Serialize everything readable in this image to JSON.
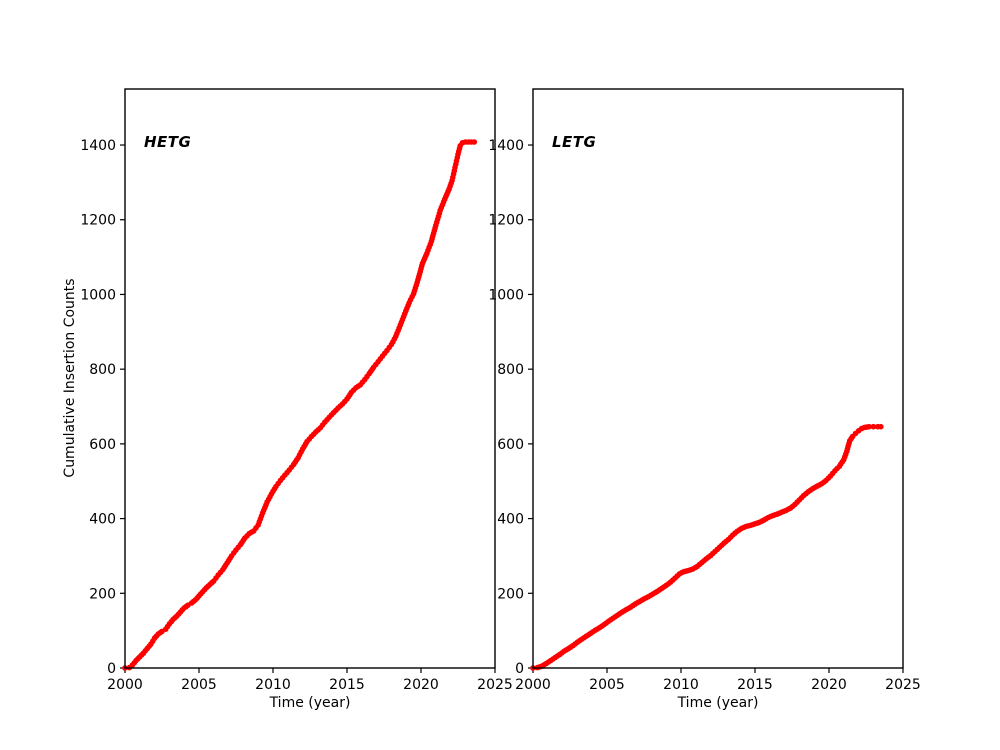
{
  "figure": {
    "background": "#ffffff",
    "axis_color": "#000000",
    "marker_color": "#ff0000"
  },
  "chart_data": [
    {
      "type": "scatter",
      "panel_label": "HETG",
      "xlabel": "Time (year)",
      "ylabel": "Cumulative Insertion Counts",
      "xlim": [
        2000,
        2025
      ],
      "ylim": [
        0,
        1550
      ],
      "xticks": [
        2000,
        2005,
        2010,
        2015,
        2020,
        2025
      ],
      "yticks": [
        0,
        200,
        400,
        600,
        800,
        1000,
        1200,
        1400
      ],
      "grid": false,
      "legend": "none",
      "marker": "circle",
      "color": "#ff0000",
      "points": [
        [
          2000.0,
          0
        ],
        [
          2000.3,
          1
        ],
        [
          2000.5,
          8
        ],
        [
          2000.75,
          20
        ],
        [
          2001.0,
          30
        ],
        [
          2001.25,
          40
        ],
        [
          2001.5,
          52
        ],
        [
          2001.75,
          64
        ],
        [
          2002.0,
          80
        ],
        [
          2002.25,
          91
        ],
        [
          2002.5,
          98
        ],
        [
          2002.75,
          104
        ],
        [
          2003.0,
          118
        ],
        [
          2003.25,
          130
        ],
        [
          2003.5,
          139
        ],
        [
          2003.75,
          150
        ],
        [
          2004.0,
          161
        ],
        [
          2004.25,
          168
        ],
        [
          2004.5,
          174
        ],
        [
          2004.75,
          182
        ],
        [
          2005.0,
          193
        ],
        [
          2005.25,
          204
        ],
        [
          2005.5,
          215
        ],
        [
          2005.75,
          224
        ],
        [
          2006.0,
          233
        ],
        [
          2006.3,
          249
        ],
        [
          2006.6,
          263
        ],
        [
          2006.9,
          281
        ],
        [
          2007.2,
          300
        ],
        [
          2007.5,
          316
        ],
        [
          2007.8,
          330
        ],
        [
          2008.1,
          348
        ],
        [
          2008.4,
          360
        ],
        [
          2008.7,
          367
        ],
        [
          2009.0,
          383
        ],
        [
          2009.3,
          415
        ],
        [
          2009.6,
          444
        ],
        [
          2009.9,
          466
        ],
        [
          2010.2,
          486
        ],
        [
          2010.5,
          502
        ],
        [
          2010.8,
          516
        ],
        [
          2011.1,
          530
        ],
        [
          2011.4,
          545
        ],
        [
          2011.7,
          563
        ],
        [
          2012.0,
          586
        ],
        [
          2012.3,
          606
        ],
        [
          2012.6,
          620
        ],
        [
          2012.9,
          632
        ],
        [
          2013.2,
          643
        ],
        [
          2013.5,
          658
        ],
        [
          2013.8,
          671
        ],
        [
          2014.1,
          684
        ],
        [
          2014.4,
          696
        ],
        [
          2014.7,
          707
        ],
        [
          2015.0,
          720
        ],
        [
          2015.3,
          738
        ],
        [
          2015.6,
          750
        ],
        [
          2015.9,
          758
        ],
        [
          2016.2,
          772
        ],
        [
          2016.5,
          788
        ],
        [
          2016.8,
          805
        ],
        [
          2017.1,
          820
        ],
        [
          2017.4,
          835
        ],
        [
          2017.7,
          850
        ],
        [
          2018.0,
          866
        ],
        [
          2018.3,
          888
        ],
        [
          2018.6,
          918
        ],
        [
          2018.9,
          948
        ],
        [
          2019.2,
          978
        ],
        [
          2019.5,
          1002
        ],
        [
          2019.8,
          1040
        ],
        [
          2020.1,
          1083
        ],
        [
          2020.4,
          1110
        ],
        [
          2020.7,
          1142
        ],
        [
          2021.0,
          1185
        ],
        [
          2021.3,
          1225
        ],
        [
          2021.6,
          1255
        ],
        [
          2021.9,
          1282
        ],
        [
          2022.1,
          1305
        ],
        [
          2022.3,
          1340
        ],
        [
          2022.5,
          1375
        ],
        [
          2022.65,
          1398
        ],
        [
          2022.8,
          1406
        ],
        [
          2023.0,
          1408
        ],
        [
          2023.2,
          1408
        ],
        [
          2023.4,
          1408
        ],
        [
          2023.6,
          1408
        ]
      ]
    },
    {
      "type": "scatter",
      "panel_label": "LETG",
      "xlabel": "Time (year)",
      "ylabel": "",
      "xlim": [
        2000,
        2025
      ],
      "ylim": [
        0,
        1550
      ],
      "xticks": [
        2000,
        2005,
        2010,
        2015,
        2020,
        2025
      ],
      "yticks": [
        0,
        200,
        400,
        600,
        800,
        1000,
        1200,
        1400
      ],
      "grid": false,
      "legend": "none",
      "marker": "circle",
      "color": "#ff0000",
      "points": [
        [
          2000.0,
          0
        ],
        [
          2000.3,
          1
        ],
        [
          2000.6,
          5
        ],
        [
          2000.9,
          12
        ],
        [
          2001.2,
          20
        ],
        [
          2001.5,
          28
        ],
        [
          2001.8,
          36
        ],
        [
          2002.1,
          45
        ],
        [
          2002.4,
          52
        ],
        [
          2002.7,
          60
        ],
        [
          2003.0,
          69
        ],
        [
          2003.3,
          77
        ],
        [
          2003.6,
          85
        ],
        [
          2003.9,
          93
        ],
        [
          2004.2,
          101
        ],
        [
          2004.5,
          108
        ],
        [
          2004.8,
          116
        ],
        [
          2005.1,
          125
        ],
        [
          2005.4,
          133
        ],
        [
          2005.7,
          141
        ],
        [
          2006.0,
          149
        ],
        [
          2006.3,
          156
        ],
        [
          2006.6,
          163
        ],
        [
          2006.9,
          171
        ],
        [
          2007.2,
          178
        ],
        [
          2007.5,
          185
        ],
        [
          2007.8,
          191
        ],
        [
          2008.1,
          198
        ],
        [
          2008.4,
          205
        ],
        [
          2008.7,
          213
        ],
        [
          2009.0,
          221
        ],
        [
          2009.3,
          230
        ],
        [
          2009.6,
          241
        ],
        [
          2009.9,
          252
        ],
        [
          2010.2,
          258
        ],
        [
          2010.5,
          261
        ],
        [
          2010.8,
          265
        ],
        [
          2011.1,
          272
        ],
        [
          2011.4,
          282
        ],
        [
          2011.7,
          292
        ],
        [
          2012.0,
          301
        ],
        [
          2012.3,
          312
        ],
        [
          2012.6,
          323
        ],
        [
          2012.9,
          334
        ],
        [
          2013.2,
          344
        ],
        [
          2013.5,
          356
        ],
        [
          2013.8,
          366
        ],
        [
          2014.1,
          374
        ],
        [
          2014.4,
          379
        ],
        [
          2014.7,
          382
        ],
        [
          2015.0,
          386
        ],
        [
          2015.3,
          390
        ],
        [
          2015.6,
          396
        ],
        [
          2015.9,
          403
        ],
        [
          2016.2,
          408
        ],
        [
          2016.5,
          412
        ],
        [
          2016.8,
          417
        ],
        [
          2017.1,
          422
        ],
        [
          2017.4,
          428
        ],
        [
          2017.7,
          438
        ],
        [
          2018.0,
          450
        ],
        [
          2018.3,
          462
        ],
        [
          2018.6,
          472
        ],
        [
          2018.9,
          480
        ],
        [
          2019.2,
          487
        ],
        [
          2019.5,
          493
        ],
        [
          2019.8,
          502
        ],
        [
          2020.1,
          514
        ],
        [
          2020.4,
          528
        ],
        [
          2020.7,
          540
        ],
        [
          2021.0,
          558
        ],
        [
          2021.2,
          580
        ],
        [
          2021.4,
          608
        ],
        [
          2021.6,
          620
        ],
        [
          2021.8,
          628
        ],
        [
          2022.0,
          635
        ],
        [
          2022.2,
          641
        ],
        [
          2022.4,
          644
        ],
        [
          2022.7,
          646
        ],
        [
          2023.0,
          646
        ],
        [
          2023.3,
          646
        ],
        [
          2023.5,
          646
        ]
      ]
    }
  ]
}
